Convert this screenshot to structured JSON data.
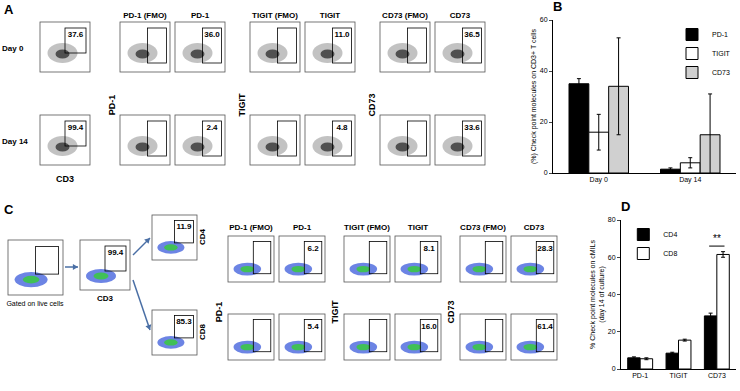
{
  "chart_data": [
    {
      "type": "bar",
      "title": "B",
      "categories": [
        "Day 0",
        "Day 14"
      ],
      "y_label": [
        "(%) Check point molecules on CD3+ T cells"
      ],
      "series": [
        {
          "name": "PD-1",
          "color": "#000000",
          "values": [
            35,
            1.5
          ],
          "error": [
            2,
            0.5
          ]
        },
        {
          "name": "TIGIT",
          "color": "#ffffff",
          "values": [
            16,
            4
          ],
          "error": [
            7,
            2
          ]
        },
        {
          "name": "CD73",
          "color": "#d0d0d0",
          "values": [
            34,
            15
          ],
          "error": [
            19,
            16
          ]
        }
      ],
      "ylim": [
        0,
        60
      ],
      "yticks": [
        0,
        20,
        40,
        60
      ],
      "grid": false,
      "legend": "top-right"
    },
    {
      "type": "bar",
      "title": "D",
      "categories": [
        "PD-1",
        "TIGIT",
        "CD73"
      ],
      "y_label": [
        "% Check point molecules on cMILs",
        "(day 14 of culture)"
      ],
      "series": [
        {
          "name": "CD4",
          "color": "#000000",
          "values": [
            6,
            8.5,
            28.5
          ],
          "error": [
            0.5,
            0.5,
            1.5
          ]
        },
        {
          "name": "CD8",
          "color": "#ffffff",
          "values": [
            5.5,
            15.5,
            61.5
          ],
          "error": [
            0.5,
            0.5,
            1.5
          ]
        }
      ],
      "annotations": [
        {
          "text": "**",
          "category": "CD73",
          "y": 66
        }
      ],
      "ylim": [
        0,
        80
      ],
      "yticks": [
        0,
        20,
        40,
        60,
        80
      ],
      "grid": false,
      "legend": "top-left"
    }
  ],
  "flow_panels": {
    "A": {
      "label": "A",
      "x_label": "CD3",
      "markers": [
        "PD-1",
        "TIGIT",
        "CD73"
      ],
      "titles": [
        [
          "PD-1 (FMO)",
          "PD-1"
        ],
        [
          "TIGIT (FMO)",
          "TIGIT"
        ],
        [
          "CD73 (FMO)",
          "CD73"
        ]
      ],
      "rows": [
        {
          "label": "Day 0",
          "cd3_gate": "37.6",
          "gates": [
            "36.0",
            "11.0",
            "36.5"
          ]
        },
        {
          "label": "Day 14",
          "cd3_gate": "99.4",
          "gates": [
            "2.4",
            "4.8",
            "33.6"
          ]
        }
      ]
    },
    "C": {
      "label": "C",
      "live_caption": "Gated on live cells",
      "cd3_label": "CD3",
      "cd3_gate": "99.4",
      "markers": [
        "PD-1",
        "TIGIT",
        "CD73"
      ],
      "titles": [
        [
          "PD-1 (FMO)",
          "PD-1"
        ],
        [
          "TIGIT (FMO)",
          "TIGIT"
        ],
        [
          "CD73 (FMO)",
          "CD73"
        ]
      ],
      "subsets": [
        {
          "label": "CD4",
          "gate": "11.9",
          "gates": [
            "6.2",
            "8.1",
            "28.3"
          ]
        },
        {
          "label": "CD8",
          "gate": "85.3",
          "gates": [
            "5.4",
            "16.0",
            "61.4"
          ]
        }
      ]
    }
  }
}
